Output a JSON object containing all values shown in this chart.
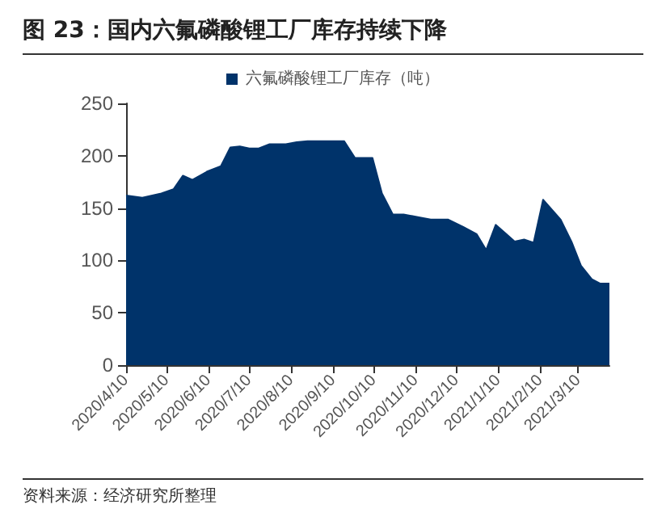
{
  "chart_data": {
    "type": "area",
    "title": "图 23：国内六氟磷酸锂工厂库存持续下降",
    "annotations": [
      "资料来源：经济研究所整理"
    ],
    "x": [
      "2020-04-10",
      "2020-04-22",
      "2020-05-06",
      "2020-05-15",
      "2020-05-22",
      "2020-05-29",
      "2020-06-09",
      "2020-06-19",
      "2020-06-26",
      "2020-07-03",
      "2020-07-10",
      "2020-07-17",
      "2020-07-25",
      "2020-08-06",
      "2020-08-14",
      "2020-08-22",
      "2020-09-18",
      "2020-09-26",
      "2020-10-09",
      "2020-10-16",
      "2020-10-24",
      "2020-11-01",
      "2020-11-13",
      "2020-11-21",
      "2020-12-04",
      "2020-12-15",
      "2020-12-25",
      "2021-01-01",
      "2021-01-08",
      "2021-01-16",
      "2021-01-22",
      "2021-01-29",
      "2021-02-05",
      "2021-02-12",
      "2021-02-25",
      "2021-03-05",
      "2021-03-12",
      "2021-03-20",
      "2021-03-26",
      "2021-04-02"
    ],
    "series": [
      {
        "name": "六氟磷酸锂工厂库存（吨）",
        "color": "#00336a",
        "values": [
          162,
          160,
          164,
          168,
          181,
          177,
          185,
          190,
          208,
          209,
          207,
          207,
          211,
          211,
          213,
          214,
          214,
          198,
          198,
          164,
          144,
          144,
          141,
          139,
          139,
          132,
          125,
          110,
          134,
          125,
          118,
          120,
          117,
          158,
          139,
          118,
          95,
          82,
          78,
          78
        ]
      }
    ],
    "xlim": [
      "2020-04-10",
      "2021-04-02"
    ],
    "xticks": [
      {
        "value": "2020-04-10",
        "label": "2020/4/10"
      },
      {
        "value": "2020-05-10",
        "label": "2020/5/10"
      },
      {
        "value": "2020-06-10",
        "label": "2020/6/10"
      },
      {
        "value": "2020-07-10",
        "label": "2020/7/10"
      },
      {
        "value": "2020-08-10",
        "label": "2020/8/10"
      },
      {
        "value": "2020-09-10",
        "label": "2020/9/10"
      },
      {
        "value": "2020-10-10",
        "label": "2020/10/10"
      },
      {
        "value": "2020-11-10",
        "label": "2020/11/10"
      },
      {
        "value": "2020-12-10",
        "label": "2020/12/10"
      },
      {
        "value": "2021-01-10",
        "label": "2021/1/10"
      },
      {
        "value": "2021-02-10",
        "label": "2021/2/10"
      },
      {
        "value": "2021-03-10",
        "label": "2021/3/10"
      }
    ],
    "ylim": [
      0,
      250
    ],
    "yticks": [
      0,
      50,
      100,
      150,
      200,
      250
    ],
    "grid": false,
    "legend": "top"
  }
}
